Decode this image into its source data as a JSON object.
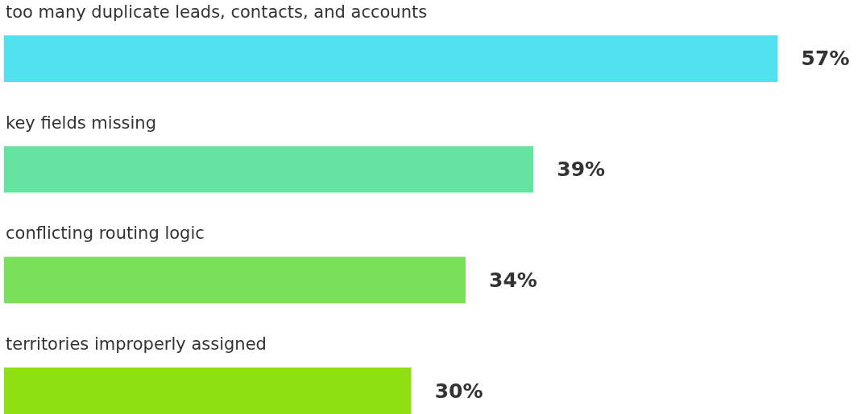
{
  "chart_data": {
    "type": "bar",
    "orientation": "horizontal",
    "categories": [
      "too many duplicate leads, contacts, and accounts",
      "key fields missing",
      "conflicting routing logic",
      "territories improperly assigned"
    ],
    "values": [
      57,
      39,
      34,
      30
    ],
    "value_labels": [
      "57%",
      "39%",
      "34%",
      "30%"
    ],
    "colors": [
      "#52e2ef",
      "#66e3a0",
      "#7ae05a",
      "#8fe010"
    ]
  }
}
